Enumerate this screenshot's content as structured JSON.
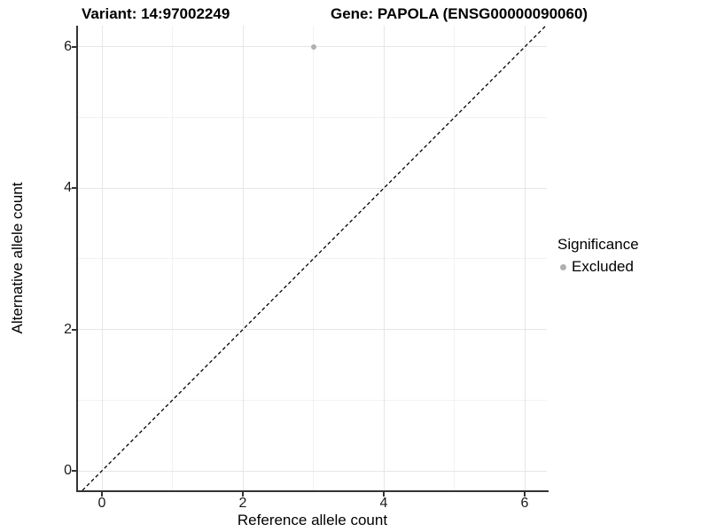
{
  "titles": {
    "variant": "Variant: 14:97002249",
    "gene": "Gene: PAPOLA (ENSG00000090060)"
  },
  "axes": {
    "x": {
      "label": "Reference allele count",
      "ticks": [
        0,
        2,
        4,
        6
      ]
    },
    "y": {
      "label": "Alternative allele count",
      "ticks": [
        0,
        2,
        4,
        6
      ]
    }
  },
  "legend": {
    "title": "Significance",
    "items": [
      {
        "label": "Excluded",
        "marker": "circle-icon",
        "color": "#b0b0b0"
      }
    ]
  },
  "chart_data": {
    "type": "scatter",
    "title": "Variant: 14:97002249 | Gene: PAPOLA (ENSG00000090060)",
    "xlabel": "Reference allele count",
    "ylabel": "Alternative allele count",
    "xlim": [
      -0.34,
      6.31
    ],
    "ylim": [
      -0.28,
      6.3
    ],
    "x_ticks": [
      0,
      2,
      4,
      6
    ],
    "y_ticks": [
      0,
      2,
      4,
      6
    ],
    "grid": "on",
    "grid_minor_at": [
      1,
      3,
      5
    ],
    "legend_position": "right",
    "series": [
      {
        "name": "Excluded",
        "color": "#b0b0b0",
        "points": [
          {
            "x": 3,
            "y": 6
          }
        ]
      }
    ],
    "reference_line": {
      "equation": "y = x",
      "style": "dashed",
      "color": "#000000"
    }
  },
  "colors": {
    "background": "#ffffff",
    "point": "#b0b0b0",
    "axis_line": "#333333",
    "grid_major": "#e6e6e6",
    "grid_minor": "#f2f2f2",
    "text": "#000000",
    "dashed_line": "#000000"
  }
}
